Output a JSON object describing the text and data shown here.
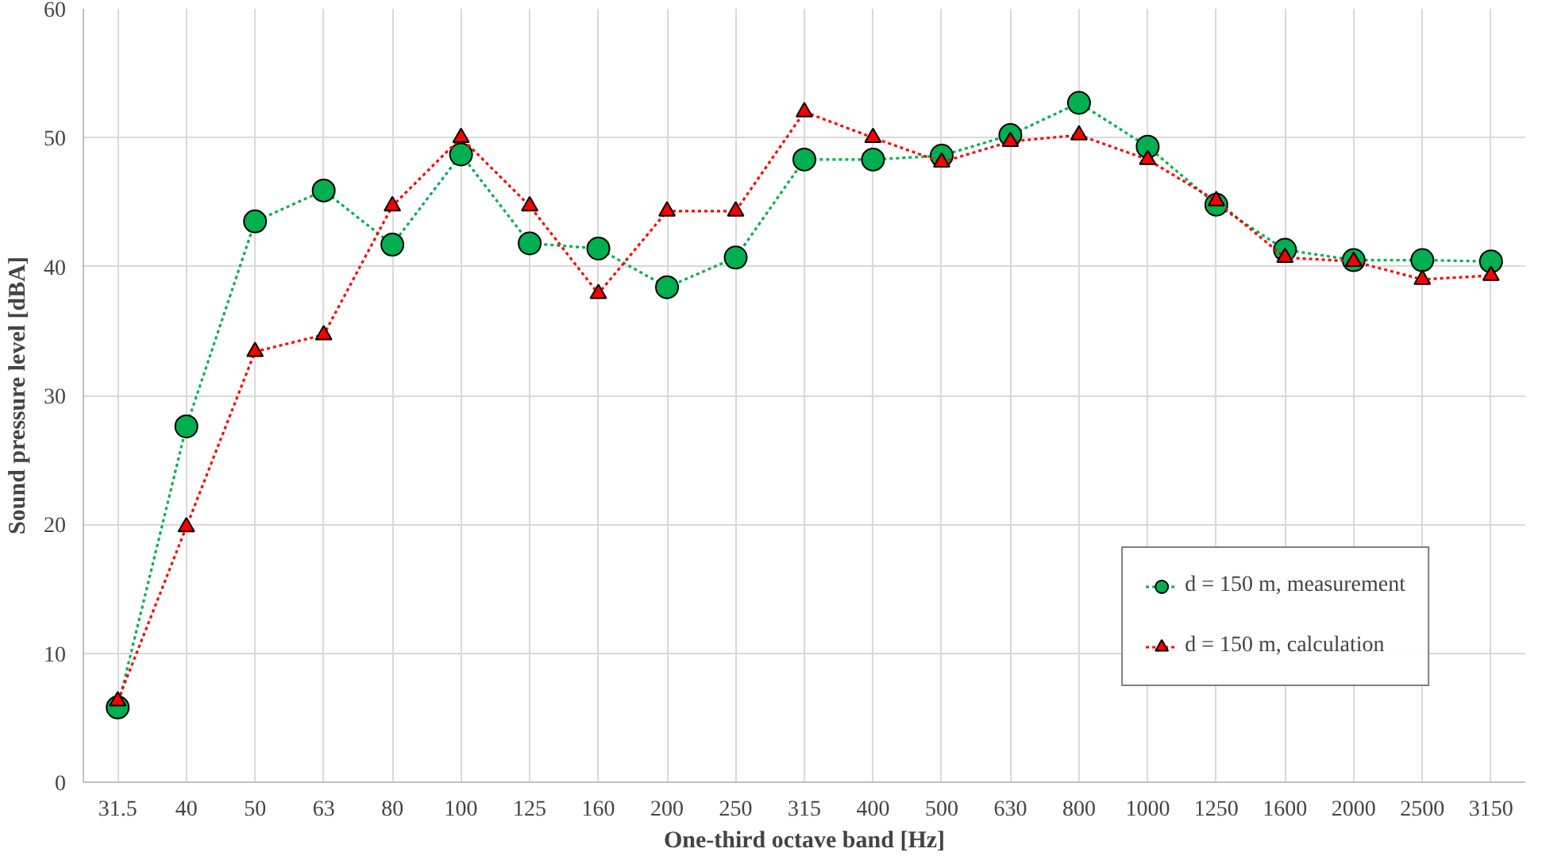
{
  "chart_data": {
    "type": "line",
    "xlabel": "One-third octave band [Hz]",
    "ylabel": "Sound pressure level [dBA]",
    "categories": [
      "31.5",
      "40",
      "50",
      "63",
      "80",
      "100",
      "125",
      "160",
      "200",
      "250",
      "315",
      "400",
      "500",
      "630",
      "800",
      "1000",
      "1250",
      "1600",
      "2000",
      "2500",
      "3150"
    ],
    "ylim": [
      0,
      60
    ],
    "yticks": [
      0,
      10,
      20,
      30,
      40,
      50,
      60
    ],
    "grid": true,
    "legend": "bottom right",
    "line_style": "dotted",
    "series": [
      {
        "name": "d = 150 m, measurement",
        "color": "#00b050",
        "marker": "circle",
        "values": [
          5.8,
          27.6,
          43.5,
          45.9,
          41.7,
          48.7,
          41.8,
          41.4,
          38.4,
          40.7,
          48.3,
          48.3,
          48.6,
          50.2,
          52.7,
          49.3,
          44.8,
          41.3,
          40.5,
          40.5,
          40.4
        ]
      },
      {
        "name": "d = 150 m, calculation",
        "color": "#ff0000",
        "marker": "triangle",
        "values": [
          6.3,
          19.8,
          33.4,
          34.7,
          44.7,
          50.0,
          44.7,
          37.9,
          44.3,
          44.3,
          52.0,
          50.0,
          48.1,
          49.7,
          50.2,
          48.3,
          45.1,
          40.7,
          40.4,
          39.0,
          39.3
        ]
      }
    ]
  }
}
